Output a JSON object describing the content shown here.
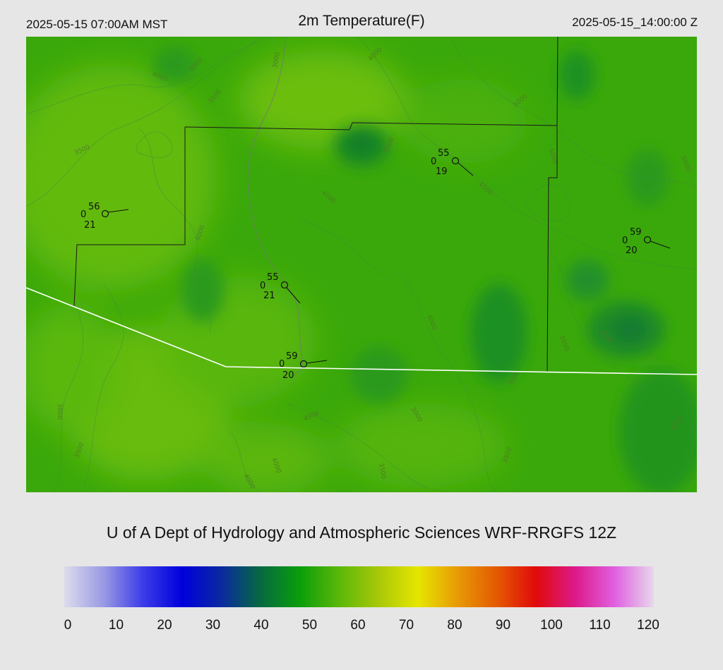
{
  "header": {
    "local_time": "2025-05-15 07:00AM MST",
    "title": "2m Temperature(F)",
    "utc_time": "2025-05-15_14:00:00 Z"
  },
  "credit": "U of A Dept of Hydrology and Atmospheric Sciences WRF-RRGFS 12Z",
  "colorbar": {
    "ticks": [
      "0",
      "10",
      "20",
      "30",
      "40",
      "50",
      "60",
      "70",
      "80",
      "90",
      "100",
      "110",
      "120"
    ],
    "min": 0,
    "max": 120,
    "colors": [
      "#dcdcec",
      "#9a9ae4",
      "#3c3ce8",
      "#0000dc",
      "#0a2aa0",
      "#066a40",
      "#0a9e0a",
      "#5cb80a",
      "#a8c808",
      "#e6e600",
      "#e89a06",
      "#e45a02",
      "#e00a0a",
      "#dc1a8a",
      "#e060e0",
      "#e8d8ec"
    ]
  },
  "stations": [
    {
      "id": "st1",
      "temp": "56",
      "cloud": "0",
      "dewpt": "21"
    },
    {
      "id": "st2",
      "temp": "55",
      "cloud": "0",
      "dewpt": "19"
    },
    {
      "id": "st3",
      "temp": "55",
      "cloud": "0",
      "dewpt": "21"
    },
    {
      "id": "st4",
      "temp": "59",
      "cloud": "0",
      "dewpt": "20"
    },
    {
      "id": "st5",
      "temp": "59",
      "cloud": "0",
      "dewpt": "20"
    }
  ],
  "contour_labels": [
    "4000",
    "4000",
    "4000",
    "3000",
    "3500",
    "3500",
    "4000",
    "4500",
    "5000",
    "4500",
    "3000",
    "3500",
    "5000",
    "4500",
    "4000",
    "4000",
    "3000",
    "3500",
    "3500",
    "4500",
    "4000",
    "3500",
    "5000",
    "5000",
    "5000",
    "4000"
  ]
}
